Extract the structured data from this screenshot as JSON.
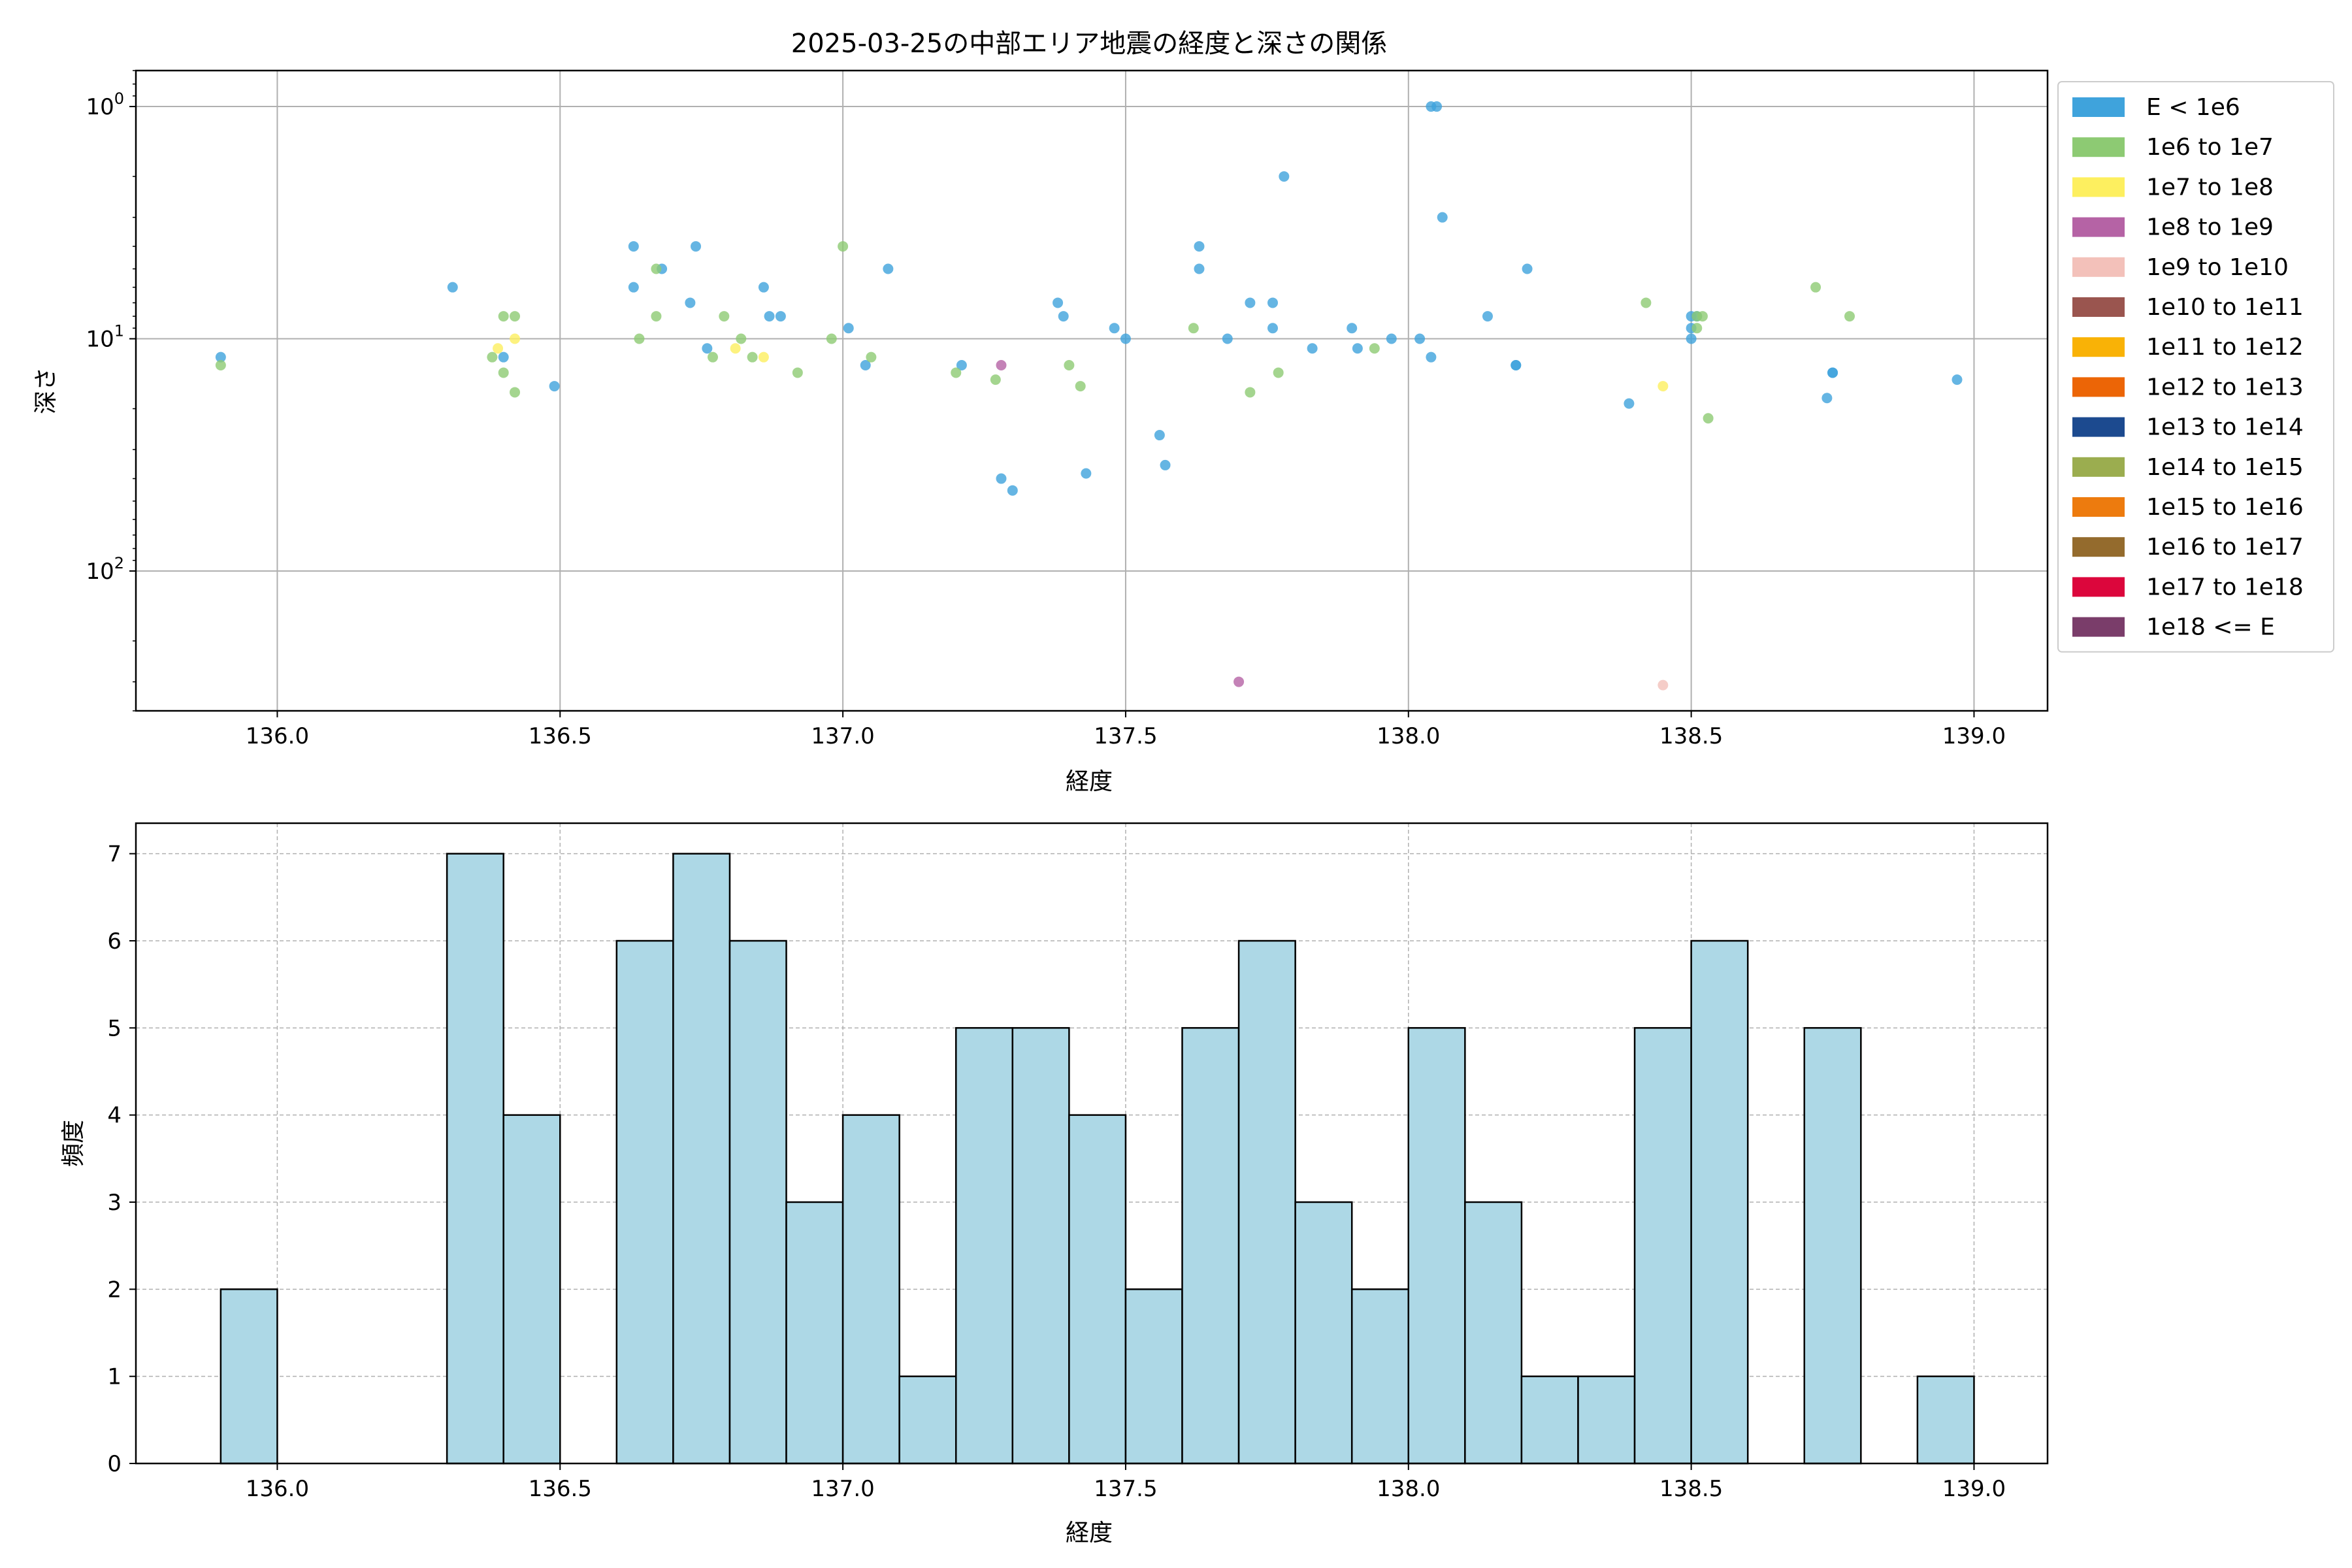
{
  "chart_data": [
    {
      "type": "scatter",
      "title": "2025-03-25の中部エリア地震の経度と深さの関係",
      "xlabel": "経度",
      "ylabel": "深さ",
      "xlim": [
        135.75,
        139.13
      ],
      "ylim": [
        400,
        0.7
      ],
      "y_scale": "log",
      "y_inverted": true,
      "grid": true,
      "xticks": [
        "136.0",
        "136.5",
        "137.0",
        "137.5",
        "138.0",
        "138.5",
        "139.0"
      ],
      "yticks": [
        {
          "value": 1,
          "base": "10",
          "exp": "0"
        },
        {
          "value": 10,
          "base": "10",
          "exp": "1"
        },
        {
          "value": 100,
          "base": "10",
          "exp": "2"
        }
      ],
      "legend_position": "outside-right-top",
      "legend": [
        {
          "label": "E < 1e6",
          "color": "#3fa3dc"
        },
        {
          "label": "1e6 to 1e7",
          "color": "#8dca73"
        },
        {
          "label": "1e7 to 1e8",
          "color": "#fdef5f"
        },
        {
          "label": "1e8 to 1e9",
          "color": "#b563a5"
        },
        {
          "label": "1e9 to 1e10",
          "color": "#f3c1ba"
        },
        {
          "label": "1e10 to 1e11",
          "color": "#9a554f"
        },
        {
          "label": "1e11 to 1e12",
          "color": "#f9b206"
        },
        {
          "label": "1e12 to 1e13",
          "color": "#ec6506"
        },
        {
          "label": "1e13 to 1e14",
          "color": "#1c4a8f"
        },
        {
          "label": "1e14 to 1e15",
          "color": "#9bad4f"
        },
        {
          "label": "1e15 to 1e16",
          "color": "#ed7b0e"
        },
        {
          "label": "1e16 to 1e17",
          "color": "#946b2d"
        },
        {
          "label": "1e17 to 1e18",
          "color": "#dc063c"
        },
        {
          "label": "1e18 <= E",
          "color": "#7a3d6a"
        }
      ],
      "series": [
        {
          "name": "E < 1e6",
          "color": "#3fa3dc",
          "points": [
            [
              135.9,
              12
            ],
            [
              136.31,
              6
            ],
            [
              136.4,
              12
            ],
            [
              136.49,
              16
            ],
            [
              136.63,
              4
            ],
            [
              136.63,
              6
            ],
            [
              136.68,
              5
            ],
            [
              136.73,
              7
            ],
            [
              136.74,
              4
            ],
            [
              136.76,
              11
            ],
            [
              136.86,
              6
            ],
            [
              136.87,
              8
            ],
            [
              136.89,
              8
            ],
            [
              137.01,
              9
            ],
            [
              137.04,
              13
            ],
            [
              137.08,
              5
            ],
            [
              137.21,
              13
            ],
            [
              137.28,
              40
            ],
            [
              137.3,
              45
            ],
            [
              137.38,
              7
            ],
            [
              137.39,
              8
            ],
            [
              137.43,
              38
            ],
            [
              137.48,
              9
            ],
            [
              137.5,
              10
            ],
            [
              137.56,
              26
            ],
            [
              137.57,
              35
            ],
            [
              137.63,
              4
            ],
            [
              137.63,
              5
            ],
            [
              137.68,
              10
            ],
            [
              137.72,
              7
            ],
            [
              137.76,
              7
            ],
            [
              137.76,
              9
            ],
            [
              137.78,
              2
            ],
            [
              137.83,
              11
            ],
            [
              137.9,
              9
            ],
            [
              137.91,
              11
            ],
            [
              137.97,
              10
            ],
            [
              138.02,
              10
            ],
            [
              138.04,
              12
            ],
            [
              138.04,
              1
            ],
            [
              138.05,
              1
            ],
            [
              138.06,
              3
            ],
            [
              138.14,
              8
            ],
            [
              138.19,
              13
            ],
            [
              138.19,
              13
            ],
            [
              138.21,
              5
            ],
            [
              138.39,
              19
            ],
            [
              138.5,
              8
            ],
            [
              138.5,
              9
            ],
            [
              138.5,
              10
            ],
            [
              138.51,
              8
            ],
            [
              138.74,
              18
            ],
            [
              138.75,
              14
            ],
            [
              138.75,
              14
            ],
            [
              138.97,
              15
            ]
          ]
        },
        {
          "name": "1e6 to 1e7",
          "color": "#8dca73",
          "points": [
            [
              135.9,
              13
            ],
            [
              136.38,
              12
            ],
            [
              136.4,
              8
            ],
            [
              136.4,
              14
            ],
            [
              136.42,
              8
            ],
            [
              136.42,
              17
            ],
            [
              136.64,
              10
            ],
            [
              136.67,
              5
            ],
            [
              136.67,
              8
            ],
            [
              136.77,
              12
            ],
            [
              136.79,
              8
            ],
            [
              136.82,
              10
            ],
            [
              136.84,
              12
            ],
            [
              136.92,
              14
            ],
            [
              136.98,
              10
            ],
            [
              137.0,
              4
            ],
            [
              137.05,
              12
            ],
            [
              137.2,
              14
            ],
            [
              137.27,
              15
            ],
            [
              137.4,
              13
            ],
            [
              137.42,
              16
            ],
            [
              137.62,
              9
            ],
            [
              137.72,
              17
            ],
            [
              137.77,
              14
            ],
            [
              137.94,
              11
            ],
            [
              138.42,
              7
            ],
            [
              138.51,
              8
            ],
            [
              138.51,
              9
            ],
            [
              138.52,
              8
            ],
            [
              138.53,
              22
            ],
            [
              138.72,
              6
            ],
            [
              138.78,
              8
            ]
          ]
        },
        {
          "name": "1e7 to 1e8",
          "color": "#fdef5f",
          "points": [
            [
              136.39,
              11
            ],
            [
              136.42,
              10
            ],
            [
              136.81,
              11
            ],
            [
              136.86,
              12
            ],
            [
              138.45,
              16
            ]
          ]
        },
        {
          "name": "1e8 to 1e9",
          "color": "#b563a5",
          "points": [
            [
              137.28,
              13
            ],
            [
              137.7,
              300
            ]
          ]
        },
        {
          "name": "1e9 to 1e10",
          "color": "#f3c1ba",
          "points": [
            [
              138.45,
              310
            ]
          ]
        }
      ]
    },
    {
      "type": "bar",
      "subtype": "histogram",
      "xlabel": "経度",
      "ylabel": "頻度",
      "xlim": [
        135.75,
        139.13
      ],
      "ylim": [
        0,
        7.35
      ],
      "grid": true,
      "grid_style": "dashed",
      "bar_color": "#add8e6",
      "edge_color": "#000000",
      "xticks": [
        "136.0",
        "136.5",
        "137.0",
        "137.5",
        "138.0",
        "138.5",
        "139.0"
      ],
      "yticks": [
        "0",
        "1",
        "2",
        "3",
        "4",
        "5",
        "6",
        "7"
      ],
      "bin_edges": [
        135.9,
        136.0,
        136.1,
        136.2,
        136.3,
        136.4,
        136.5,
        136.6,
        136.7,
        136.8,
        136.9,
        137.0,
        137.1,
        137.2,
        137.3,
        137.4,
        137.5,
        137.6,
        137.7,
        137.8,
        137.9,
        138.0,
        138.1,
        138.2,
        138.3,
        138.4,
        138.5,
        138.6,
        138.7,
        138.8,
        138.9,
        139.0
      ],
      "values": [
        2,
        0,
        0,
        0,
        7,
        4,
        0,
        6,
        7,
        6,
        3,
        4,
        1,
        5,
        5,
        4,
        2,
        5,
        6,
        3,
        2,
        5,
        3,
        1,
        1,
        5,
        6,
        0,
        5,
        0,
        1
      ]
    }
  ]
}
